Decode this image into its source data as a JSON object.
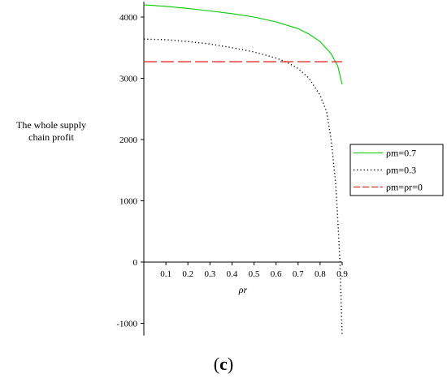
{
  "chart_data": {
    "type": "line",
    "xlabel": "ρr",
    "ylabel_lines": [
      "The whole supply",
      "chain profit"
    ],
    "xlim": [
      0.0,
      0.9
    ],
    "ylim": [
      -1200,
      4250
    ],
    "x_ticks": [
      0.1,
      0.2,
      0.3,
      0.4,
      0.5,
      0.6,
      0.7,
      0.8,
      0.9
    ],
    "x_tick_labels": [
      "0.1",
      "0.2",
      "0.3",
      "0.4",
      "0.5",
      "0.6",
      "0.7",
      "0.8",
      "0.9"
    ],
    "y_ticks": [
      -1000,
      0,
      1000,
      2000,
      3000,
      4000
    ],
    "y_tick_labels": [
      "-1000",
      "0",
      "1000",
      "2000",
      "3000",
      "4000"
    ],
    "series": [
      {
        "name": "ρm=0.7",
        "color": "#00cc00",
        "style": "solid",
        "x": [
          0.0,
          0.1,
          0.2,
          0.3,
          0.4,
          0.5,
          0.6,
          0.7,
          0.75,
          0.8,
          0.85,
          0.88,
          0.9
        ],
        "y": [
          4200,
          4175,
          4140,
          4100,
          4055,
          4000,
          3920,
          3810,
          3720,
          3600,
          3400,
          3200,
          2900
        ]
      },
      {
        "name": "ρm=0.3",
        "color": "#000000",
        "style": "dotted",
        "x": [
          0.0,
          0.1,
          0.2,
          0.3,
          0.4,
          0.5,
          0.6,
          0.65,
          0.7,
          0.75,
          0.8,
          0.83,
          0.85,
          0.87,
          0.88,
          0.89,
          0.9
        ],
        "y": [
          3640,
          3630,
          3600,
          3560,
          3500,
          3430,
          3330,
          3260,
          3160,
          3000,
          2720,
          2450,
          2000,
          1300,
          700,
          0,
          -1200
        ]
      },
      {
        "name": "ρm=ρr=0",
        "color": "#e00000",
        "style": "dashed",
        "x": [
          0.0,
          0.9
        ],
        "y": [
          3270,
          3270
        ]
      }
    ],
    "legend_position": "right"
  },
  "caption": {
    "open": "(",
    "letter": "c",
    "close": ")"
  }
}
